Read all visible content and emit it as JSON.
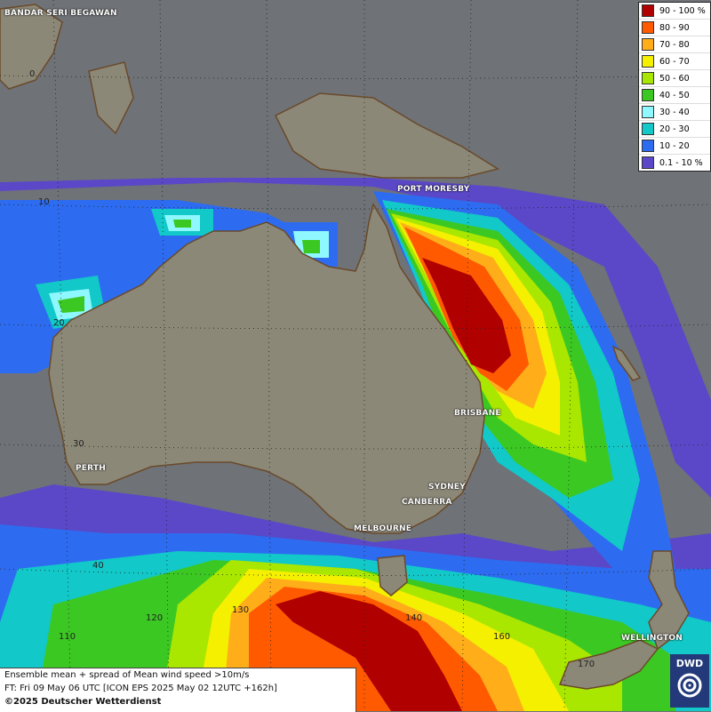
{
  "legend": [
    {
      "label": "90 - 100 %",
      "color": "#b00000"
    },
    {
      "label": "80 - 90",
      "color": "#ff5a00"
    },
    {
      "label": "70 - 80",
      "color": "#ffae1a"
    },
    {
      "label": "60 - 70",
      "color": "#f4f000"
    },
    {
      "label": "50 - 60",
      "color": "#a9e600"
    },
    {
      "label": "40 - 50",
      "color": "#3cc823"
    },
    {
      "label": "30 - 40",
      "color": "#8ff8ff"
    },
    {
      "label": "20 - 30",
      "color": "#12c8c8"
    },
    {
      "label": "10 - 20",
      "color": "#2d6cf0"
    },
    {
      "label": "0.1 - 10 %",
      "color": "#5a48c8"
    }
  ],
  "cities": {
    "bandar_seri_begawan": "BANDAR SERI BEGAWAN",
    "port_moresby": "PORT MORESBY",
    "brisbane": "BRISBANE",
    "perth": "PERTH",
    "sydney": "SYDNEY",
    "canberra": "CANBERRA",
    "melbourne": "MELBOURNE",
    "wellington": "WELLINGTON"
  },
  "grid_labels": {
    "lat0": "0",
    "lat10": "10",
    "lat20": "20",
    "lat30": "30",
    "lat40": "40",
    "lon110": "110",
    "lon120": "120",
    "lon130": "130",
    "lon140": "140",
    "lon160": "160",
    "lon170": "170"
  },
  "info": {
    "line1": "Ensemble mean + spread of Mean wind speed >10m/s",
    "line2": "FT: Fri 09 May 06 UTC [ICON EPS 2025 May 02 12UTC +162h]",
    "copyright": "©2025 Deutscher Wetterdienst"
  },
  "logo": {
    "text": "DWD"
  }
}
